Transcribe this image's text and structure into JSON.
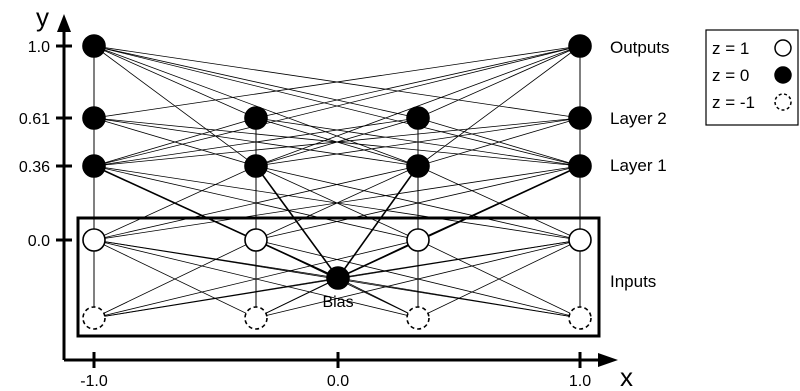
{
  "axes": {
    "y_label": "y",
    "x_label": "x",
    "y_ticks": [
      {
        "value": 1.0,
        "label": "1.0"
      },
      {
        "value": 0.61,
        "label": "0.61"
      },
      {
        "value": 0.36,
        "label": "0.36"
      },
      {
        "value": 0.0,
        "label": "0.0"
      }
    ],
    "x_ticks": [
      {
        "value": -1.0,
        "label": "-1.0"
      },
      {
        "value": 0.0,
        "label": "0.0"
      },
      {
        "value": 1.0,
        "label": "1.0"
      }
    ]
  },
  "layers": {
    "outputs": "Outputs",
    "layer2": "Layer 2",
    "layer1": "Layer 1",
    "inputs": "Inputs"
  },
  "bias_label": "Bias",
  "legend": {
    "items": [
      {
        "label": "z = 1",
        "style": "open"
      },
      {
        "label": "z = 0",
        "style": "filled"
      },
      {
        "label": "z = -1",
        "style": "dashed"
      }
    ]
  },
  "colors": {
    "ink": "#000000",
    "background": "#ffffff"
  }
}
